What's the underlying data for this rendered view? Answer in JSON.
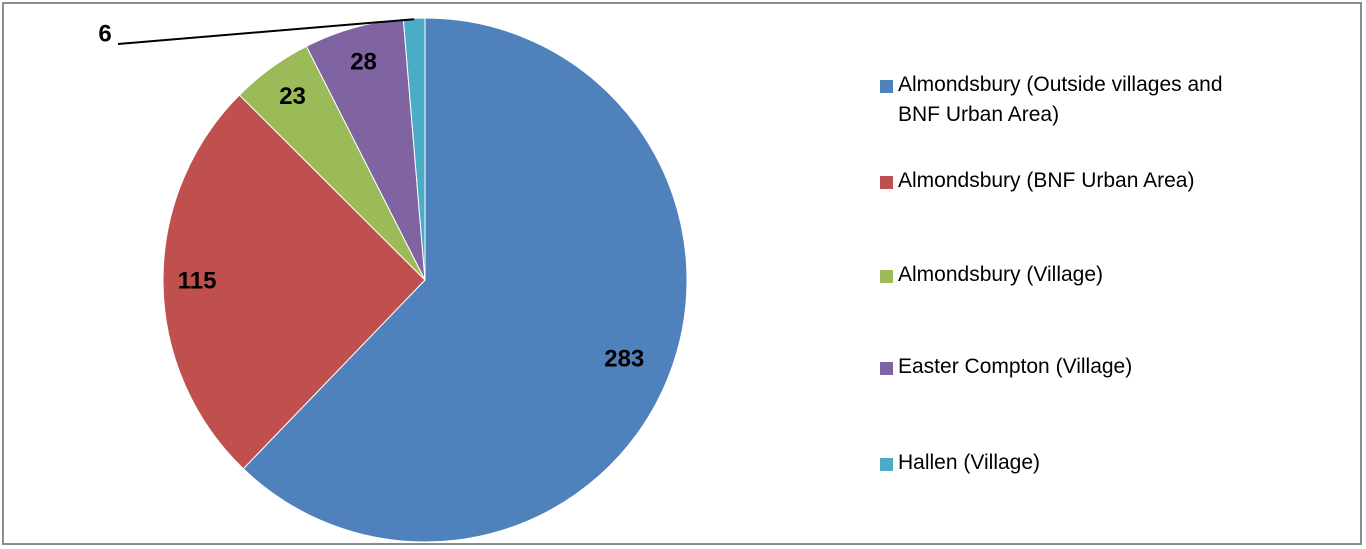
{
  "chart_data": {
    "type": "pie",
    "title": "",
    "slices": [
      {
        "label": "Almondsbury (Outside villages and BNF Urban Area)",
        "value": 283,
        "color": "#4F81BD"
      },
      {
        "label": "Almondsbury (BNF Urban Area)",
        "value": 115,
        "color": "#C0504D"
      },
      {
        "label": "Almondsbury (Village)",
        "value": 23,
        "color": "#9BBB59"
      },
      {
        "label": "Easter Compton (Village)",
        "value": 28,
        "color": "#8064A2"
      },
      {
        "label": "Hallen (Village)",
        "value": 6,
        "color": "#4BACC6"
      }
    ],
    "legend_position": "right"
  },
  "data_labels": [
    "283",
    "115",
    "23",
    "28",
    "6"
  ],
  "legend": {
    "items": [
      {
        "label_line1": "Almondsbury (Outside villages and",
        "label_line2": "BNF Urban Area)"
      },
      {
        "label_line1": "Almondsbury (BNF Urban Area)",
        "label_line2": ""
      },
      {
        "label_line1": "Almondsbury (Village)",
        "label_line2": ""
      },
      {
        "label_line1": "Easter Compton (Village)",
        "label_line2": ""
      },
      {
        "label_line1": "Hallen (Village)",
        "label_line2": ""
      }
    ]
  }
}
